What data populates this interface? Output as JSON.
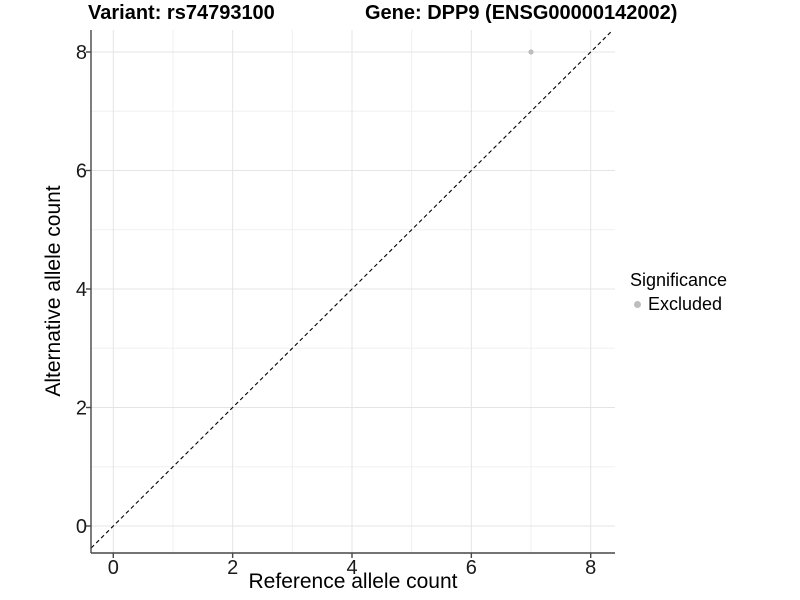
{
  "titles": {
    "left": "Variant: rs74793100",
    "right": "Gene: DPP9 (ENSG00000142002)"
  },
  "chart_data": {
    "type": "scatter",
    "xlabel": "Reference allele count",
    "ylabel": "Alternative allele count",
    "xlim": [
      -0.37,
      8.41
    ],
    "ylim": [
      -0.46,
      8.37
    ],
    "xticks": [
      0,
      2,
      4,
      6,
      8
    ],
    "yticks": [
      0,
      2,
      4,
      6,
      8
    ],
    "xminor": [
      1,
      3,
      5,
      7
    ],
    "yminor": [
      1,
      3,
      5,
      7
    ],
    "grid": "major+minor",
    "series": [
      {
        "name": "Excluded",
        "color": "#bdbdbd",
        "points": [
          {
            "x": 7,
            "y": 8
          }
        ]
      }
    ],
    "reference_line": {
      "slope": 1,
      "intercept": 0,
      "style": "dashed",
      "color": "#000000"
    },
    "legend": {
      "title": "Significance",
      "position": "right",
      "items": [
        {
          "label": "Excluded",
          "color": "#bdbdbd",
          "marker": "circle"
        }
      ]
    },
    "colors": {
      "grid_major": "#e4e4e4",
      "grid_minor": "#f0f0f0",
      "axis": "#464646",
      "tick_label": "#1a1a1a",
      "title": "#000000"
    }
  }
}
